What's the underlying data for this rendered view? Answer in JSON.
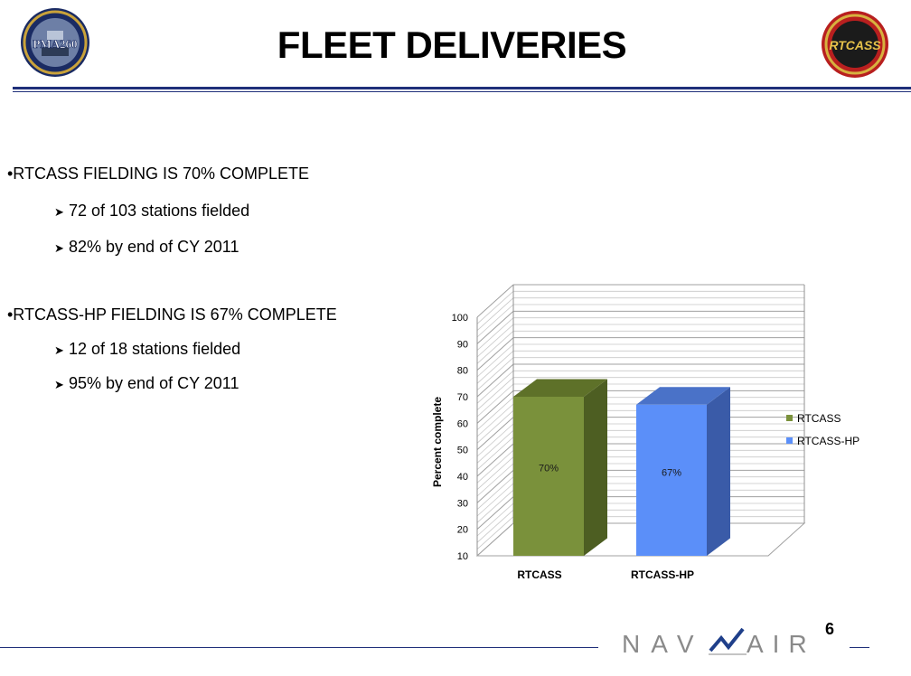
{
  "slide": {
    "title": "FLEET DELIVERIES",
    "page_number": "6",
    "logo_left_text": "PMA260",
    "logo_right_text": "RTCASS",
    "footer_logo": {
      "left": "NAV",
      "right": "AIR"
    }
  },
  "bullets": [
    {
      "text": "•RTCASS FIELDING IS 70% COMPLETE",
      "subs": [
        "72 of 103 stations fielded",
        "82%  by end of CY 2011"
      ]
    },
    {
      "text": "•RTCASS-HP FIELDING IS 67% COMPLETE",
      "subs": [
        "12 of 18 stations fielded",
        "95% by end of CY 2011"
      ]
    }
  ],
  "chart_data": {
    "type": "bar",
    "categories": [
      "RTCASS",
      "RTCASS-HP"
    ],
    "values": [
      70,
      67
    ],
    "data_labels": [
      "70%",
      "67%"
    ],
    "ylabel": "Percent complete",
    "xlabel": "",
    "ylim": [
      10,
      100
    ],
    "yticks": [
      "10",
      "20",
      "30",
      "40",
      "50",
      "60",
      "70",
      "80",
      "90",
      "100"
    ],
    "legend": [
      "RTCASS",
      "RTCASS-HP"
    ],
    "legend_position": "right",
    "grid": true,
    "style": "3d",
    "colors": {
      "RTCASS": {
        "front": "#7a913b",
        "side": "#4d5e22",
        "top": "#5e7129"
      },
      "RTCASS-HP": {
        "front": "#5b8ff9",
        "side": "#3a5ba8",
        "top": "#4a72c8"
      }
    }
  }
}
